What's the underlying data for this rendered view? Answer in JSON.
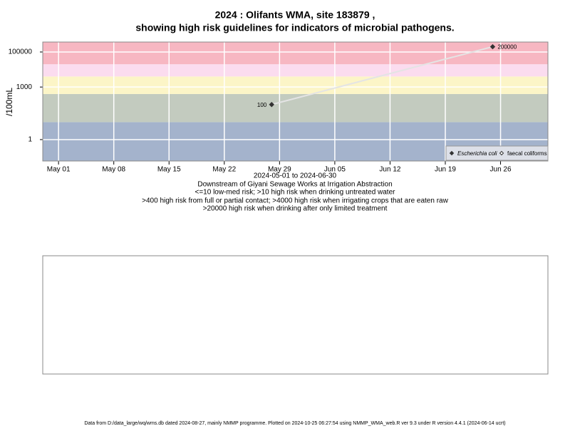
{
  "chart_data": {
    "type": "line",
    "title": [
      "2024 : Olifants WMA, site 183879 ,",
      "showing high risk guidelines for indicators of microbial pathogens."
    ],
    "y_label": "/100mL",
    "x_label": "2024-05-01 to 2024-06-30",
    "notes": [
      "Downstream of Giyani Sewage Works at Irrigation Abstraction",
      "<=10 low-med risk; >10 high risk when drinking untreated water",
      ">400 high risk from full or partial contact; >4000 high risk when irrigating crops that are eaten raw",
      ">20000 high risk when drinking after only limited treatment"
    ],
    "footer": "Data from D:/data_large/wq/wms.db dated 2024-08-27, mainly NMMP programme. Plotted on 2024-10-25 06:27:54 using NMMP_WMA_web.R ver 9.3 under R version 4.4.1 (2024-06-14 ucrt)",
    "log_y": true,
    "grid": true,
    "legend_position": "bottom-right",
    "thresholds": [
      10,
      400,
      4000,
      20000
    ],
    "band_colors": [
      "#a4b3cc",
      "#c3cbbf",
      "#fcf5c7",
      "#fbdcef",
      "#f7b7c2"
    ],
    "xlim": [
      "2024-04-29",
      "2024-07-02"
    ],
    "xticks": [
      {
        "value": "2024-05-01",
        "label": "May 01"
      },
      {
        "value": "2024-05-08",
        "label": "May 08"
      },
      {
        "value": "2024-05-15",
        "label": "May 15"
      },
      {
        "value": "2024-05-22",
        "label": "May 22"
      },
      {
        "value": "2024-05-29",
        "label": "May 29"
      },
      {
        "value": "2024-06-05",
        "label": "Jun 05"
      },
      {
        "value": "2024-06-12",
        "label": "Jun 12"
      },
      {
        "value": "2024-06-19",
        "label": "Jun 19"
      },
      {
        "value": "2024-06-26",
        "label": "Jun 26"
      }
    ],
    "ylim": [
      0.06,
      370000
    ],
    "yticks": [
      1,
      1000,
      100000
    ],
    "line_color": "#e4e4e4",
    "series": [
      {
        "name": "Escherichia coli",
        "color": "#333333",
        "filled": true,
        "x": [
          "2024-05-28",
          "2024-06-25"
        ],
        "values": [
          100,
          200000
        ]
      },
      {
        "name": "faecal coliforms",
        "color": "#333333",
        "filled": false,
        "x": [],
        "values": []
      }
    ]
  }
}
